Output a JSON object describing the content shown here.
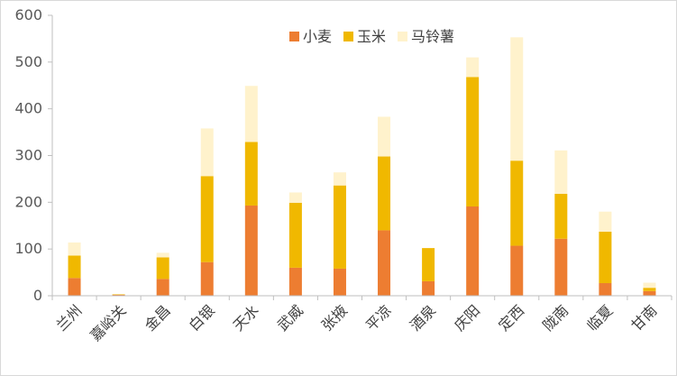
{
  "chart_data": {
    "type": "bar",
    "stacked": true,
    "categories": [
      "兰州",
      "嘉峪关",
      "金昌",
      "白银",
      "天水",
      "武威",
      "张掖",
      "平凉",
      "酒泉",
      "庆阳",
      "定西",
      "陇南",
      "临夏",
      "甘南"
    ],
    "series": [
      {
        "name": "小麦",
        "color": "#ed7d31",
        "values": [
          38,
          2,
          36,
          72,
          193,
          60,
          58,
          140,
          31,
          191,
          107,
          122,
          27,
          10
        ]
      },
      {
        "name": "玉米",
        "color": "#f0b800",
        "values": [
          48,
          1,
          46,
          184,
          136,
          139,
          178,
          158,
          71,
          277,
          182,
          96,
          110,
          7
        ]
      },
      {
        "name": "马铃薯",
        "color": "#fff2cc",
        "values": [
          28,
          0,
          10,
          102,
          120,
          22,
          28,
          85,
          0,
          42,
          264,
          93,
          43,
          11
        ]
      }
    ],
    "ylim": [
      0,
      600
    ],
    "yticks": [
      0,
      100,
      200,
      300,
      400,
      500,
      600
    ],
    "grid": false,
    "legend_position": "top-center"
  }
}
